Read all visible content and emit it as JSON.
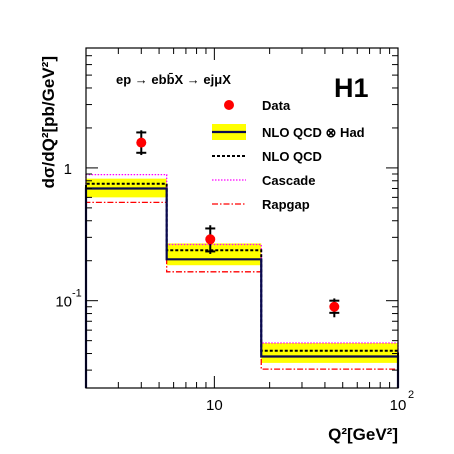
{
  "chart_data": {
    "type": "line",
    "process_label": "ep → ebb̄X → ejμX",
    "experiment_label": "H1",
    "experiment_color": "#ff0000",
    "xlabel": "Q²[GeV²]",
    "ylabel": "dσ/dQ²[pb/GeV²]",
    "x_scale": "log",
    "y_scale": "log",
    "xlim": [
      2,
      100
    ],
    "ylim": [
      0.022,
      8
    ],
    "x_tick_labels": [
      "10",
      "10"
    ],
    "x_tick_exponents": [
      "",
      "2"
    ],
    "y_tick_labels": [
      "1",
      "10"
    ],
    "y_tick_exponents": [
      "",
      "-1"
    ],
    "bins": [
      [
        2,
        5.5
      ],
      [
        5.5,
        18
      ],
      [
        18,
        100
      ]
    ],
    "legend": [
      {
        "label": "Data",
        "style": "marker",
        "color": "#ff0000"
      },
      {
        "label": "NLO  QCD ⊗ Had",
        "style": "band",
        "color": "#0a0a50",
        "band_color": "#ffff00"
      },
      {
        "label": "NLO  QCD",
        "style": "dotted",
        "color": "#000000"
      },
      {
        "label": "Cascade",
        "style": "dotted-fine",
        "color": "#ff00ff"
      },
      {
        "label": "Rapgap",
        "style": "dashdot",
        "color": "#ff0000"
      }
    ],
    "legend_position": "top-right",
    "series": [
      {
        "name": "Data",
        "x": [
          4.0,
          9.5,
          45.0
        ],
        "y": [
          1.55,
          0.29,
          0.09
        ],
        "y_err_stat": [
          [
            1.3,
            1.85
          ],
          [
            0.235,
            0.35
          ],
          [
            0.081,
            0.1
          ]
        ],
        "y_err_tot": [
          [
            1.25,
            1.92
          ],
          [
            0.225,
            0.37
          ],
          [
            0.075,
            0.104
          ]
        ]
      },
      {
        "name": "NLO  QCD ⊗ Had",
        "y": [
          0.7,
          0.205,
          0.038
        ],
        "band": [
          [
            0.6,
            0.83
          ],
          [
            0.185,
            0.27
          ],
          [
            0.034,
            0.048
          ]
        ]
      },
      {
        "name": "NLO  QCD",
        "y": [
          0.76,
          0.24,
          0.042
        ]
      },
      {
        "name": "Cascade",
        "y": [
          0.89,
          0.265,
          0.048
        ]
      },
      {
        "name": "Rapgap",
        "y": [
          0.55,
          0.165,
          0.0305
        ]
      }
    ]
  }
}
